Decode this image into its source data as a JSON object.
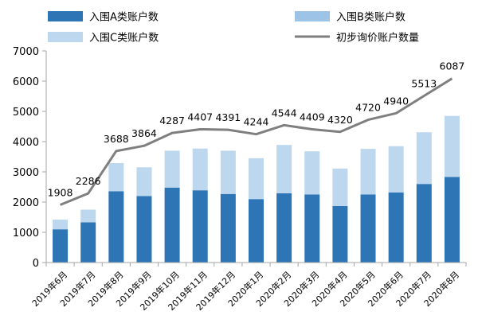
{
  "chart_data": {
    "type": "bar",
    "categories": [
      "2019年6月",
      "2019年7月",
      "2019年8月",
      "2019年9月",
      "2019年10月",
      "2019年11月",
      "2019年12月",
      "2020年1月",
      "2020年2月",
      "2020年3月",
      "2020年4月",
      "2020年5月",
      "2020年6月",
      "2020年7月",
      "2020年8月"
    ],
    "series": [
      {
        "name": "入围A类账户数",
        "kind": "bar",
        "stack": "total",
        "color": "#2e75b6",
        "values": [
          1100,
          1330,
          2360,
          2200,
          2480,
          2390,
          2270,
          2100,
          2290,
          2250,
          1870,
          2250,
          2320,
          2600,
          2830
        ]
      },
      {
        "name": "入围B类账户数",
        "kind": "bar",
        "stack": "total",
        "color": "#9dc3e6",
        "values": [
          0,
          0,
          0,
          0,
          0,
          0,
          0,
          0,
          0,
          0,
          0,
          0,
          0,
          0,
          0
        ]
      },
      {
        "name": "入围C类账户数",
        "kind": "bar",
        "stack": "total",
        "color": "#bdd7ee",
        "values": [
          320,
          420,
          930,
          950,
          1220,
          1380,
          1430,
          1350,
          1600,
          1430,
          1240,
          1510,
          1530,
          1710,
          2020
        ]
      },
      {
        "name": "初步询价账户数量",
        "kind": "line",
        "color": "#7f7f7f",
        "values": [
          1908,
          2286,
          3688,
          3864,
          4287,
          4407,
          4391,
          4244,
          4544,
          4409,
          4320,
          4720,
          4940,
          5513,
          6087
        ],
        "labels": [
          "1908",
          "2286",
          "3688",
          "3864",
          "4287",
          "4407",
          "4391",
          "4244",
          "4544",
          "4409",
          "4320",
          "4720",
          "4940",
          "5513",
          "6087"
        ]
      }
    ],
    "ylim": [
      0,
      7000
    ],
    "yticks": [
      "0",
      "1000",
      "2000",
      "3000",
      "4000",
      "5000",
      "6000",
      "7000"
    ],
    "grid": false,
    "legend": "top"
  }
}
